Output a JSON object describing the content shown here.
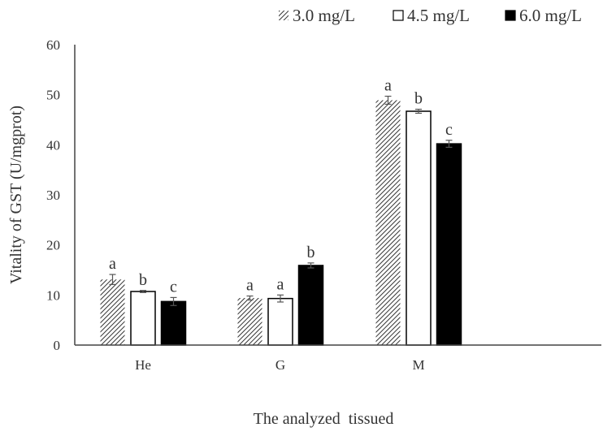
{
  "chart_data": {
    "type": "bar",
    "title": "",
    "xlabel": "The analyzed  tissued",
    "ylabel": "Vitality of GST  (U/mgprot)",
    "ylim": [
      0,
      60
    ],
    "yticks": [
      "0",
      "10",
      "20",
      "30",
      "40",
      "50",
      "60"
    ],
    "categories": [
      "He",
      "G",
      "M"
    ],
    "legend_position": "top-right",
    "grid": false,
    "series": [
      {
        "name": "3.0 mg/L",
        "fill": "hatched",
        "values": [
          13.1,
          9.4,
          48.9
        ],
        "errors": [
          1.0,
          0.4,
          0.8
        ],
        "labels": [
          "a",
          "a",
          "a"
        ]
      },
      {
        "name": "4.5 mg/L",
        "fill": "#ffffff",
        "values": [
          10.7,
          9.3,
          46.7
        ],
        "errors": [
          0.2,
          0.7,
          0.4
        ],
        "labels": [
          "b",
          "a",
          "b"
        ]
      },
      {
        "name": "6.0 mg/L",
        "fill": "#000000",
        "values": [
          8.7,
          15.9,
          40.2
        ],
        "errors": [
          0.8,
          0.5,
          0.7
        ],
        "labels": [
          "c",
          "b",
          "c"
        ]
      }
    ]
  }
}
